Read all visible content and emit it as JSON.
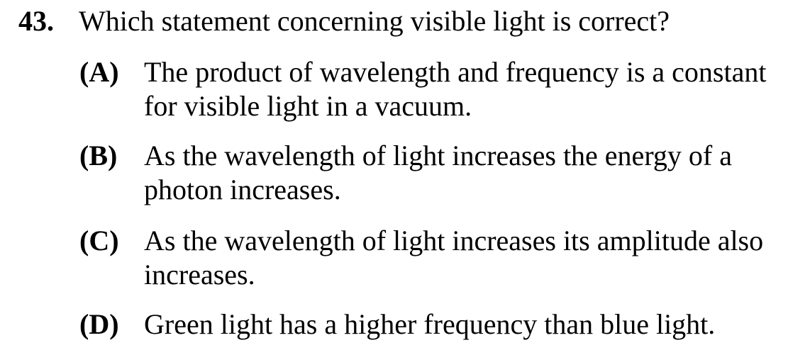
{
  "question": {
    "number": "43.",
    "stem": "Which statement concerning visible light is correct?",
    "options": [
      {
        "letter": "(A)",
        "text": "The product of wavelength and frequency is a constant for visible light in a vacuum."
      },
      {
        "letter": "(B)",
        "text": "As the wavelength of light increases the energy of a photon increases."
      },
      {
        "letter": "(C)",
        "text": "As the wavelength of light increases its amplitude also increases."
      },
      {
        "letter": "(D)",
        "text": "Green light has a higher frequency than blue light."
      }
    ]
  }
}
